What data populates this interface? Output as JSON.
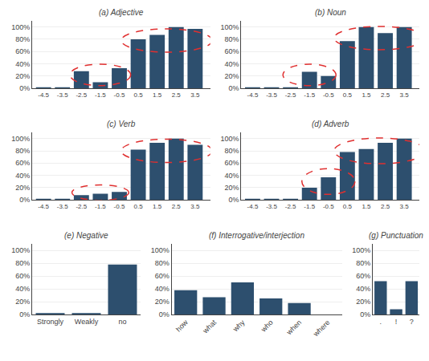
{
  "chart_data": [
    {
      "type": "bar",
      "title": "(a) Adjective",
      "x": [
        -4.5,
        -3.5,
        -2.5,
        -1.5,
        -0.5,
        0.5,
        1.5,
        2.5,
        3.5
      ],
      "values": [
        2,
        2,
        28,
        10,
        33,
        80,
        87,
        100,
        97
      ],
      "color": "#2d4f6e",
      "xlim": [
        -5.1,
        4.3
      ],
      "xticks": [
        -4.5,
        -3.5,
        -2.5,
        -1.5,
        -0.5,
        0.5,
        1.5,
        2.5,
        3.5
      ],
      "ylim": [
        0,
        110
      ],
      "yticks": [
        {
          "value": 0,
          "label": "0%"
        },
        {
          "value": 20,
          "label": "20%"
        },
        {
          "value": 40,
          "label": "40%"
        },
        {
          "value": 60,
          "label": "60%"
        },
        {
          "value": 80,
          "label": "80%"
        },
        {
          "value": 100,
          "label": "100%"
        }
      ],
      "grid": true,
      "ellipses": [
        {
          "cx": -1.5,
          "cy": 22,
          "w": 3.2,
          "h": 35,
          "color": "#e03030"
        },
        {
          "cx": 2.0,
          "cy": 78,
          "w": 4.8,
          "h": 38,
          "color": "#e03030"
        }
      ]
    },
    {
      "type": "bar",
      "title": "(b) Noun",
      "x": [
        -4.5,
        -3.5,
        -2.5,
        -1.5,
        -0.5,
        0.5,
        1.5,
        2.5,
        3.5
      ],
      "values": [
        2,
        2,
        2,
        27,
        20,
        77,
        100,
        90,
        100
      ],
      "color": "#2d4f6e",
      "xlim": [
        -5.1,
        4.3
      ],
      "xticks": [
        -4.5,
        -3.5,
        -2.5,
        -1.5,
        -0.5,
        0.5,
        1.5,
        2.5,
        3.5
      ],
      "ylim": [
        0,
        110
      ],
      "yticks": [
        {
          "value": 0,
          "label": "0%"
        },
        {
          "value": 20,
          "label": "20%"
        },
        {
          "value": 40,
          "label": "40%"
        },
        {
          "value": 60,
          "label": "60%"
        },
        {
          "value": 80,
          "label": "80%"
        },
        {
          "value": 100,
          "label": "100%"
        }
      ],
      "grid": true,
      "ellipses": [
        {
          "cx": -1.5,
          "cy": 22,
          "w": 2.8,
          "h": 35,
          "color": "#e03030"
        },
        {
          "cx": 2.2,
          "cy": 82,
          "w": 4.8,
          "h": 38,
          "color": "#e03030"
        }
      ]
    },
    {
      "type": "bar",
      "title": "(c) Verb",
      "x": [
        -4.5,
        -3.5,
        -2.5,
        -1.5,
        -0.5,
        0.5,
        1.5,
        2.5,
        3.5
      ],
      "values": [
        2,
        2,
        8,
        10,
        13,
        82,
        93,
        100,
        90
      ],
      "color": "#2d4f6e",
      "xlim": [
        -5.1,
        4.3
      ],
      "xticks": [
        -4.5,
        -3.5,
        -2.5,
        -1.5,
        -0.5,
        0.5,
        1.5,
        2.5,
        3.5
      ],
      "ylim": [
        0,
        110
      ],
      "yticks": [
        {
          "value": 0,
          "label": "0%"
        },
        {
          "value": 20,
          "label": "20%"
        },
        {
          "value": 40,
          "label": "40%"
        },
        {
          "value": 60,
          "label": "60%"
        },
        {
          "value": 80,
          "label": "80%"
        },
        {
          "value": 100,
          "label": "100%"
        }
      ],
      "grid": true,
      "ellipses": [
        {
          "cx": -1.5,
          "cy": 12,
          "w": 3.0,
          "h": 25,
          "color": "#e03030"
        },
        {
          "cx": 2.0,
          "cy": 80,
          "w": 4.8,
          "h": 38,
          "color": "#e03030"
        }
      ]
    },
    {
      "type": "bar",
      "title": "(d) Adverb",
      "x": [
        -4.5,
        -3.5,
        -2.5,
        -1.5,
        -0.5,
        0.5,
        1.5,
        2.5,
        3.5
      ],
      "values": [
        2,
        2,
        2,
        20,
        37,
        78,
        83,
        93,
        100
      ],
      "color": "#2d4f6e",
      "xlim": [
        -5.1,
        4.3
      ],
      "xticks": [
        -4.5,
        -3.5,
        -2.5,
        -1.5,
        -0.5,
        0.5,
        1.5,
        2.5,
        3.5
      ],
      "ylim": [
        0,
        110
      ],
      "yticks": [
        {
          "value": 0,
          "label": "0%"
        },
        {
          "value": 20,
          "label": "20%"
        },
        {
          "value": 40,
          "label": "40%"
        },
        {
          "value": 60,
          "label": "60%"
        },
        {
          "value": 80,
          "label": "80%"
        },
        {
          "value": 100,
          "label": "100%"
        }
      ],
      "grid": true,
      "ellipses": [
        {
          "cx": -0.5,
          "cy": 30,
          "w": 2.8,
          "h": 42,
          "color": "#e03030"
        },
        {
          "cx": 2.2,
          "cy": 80,
          "w": 4.8,
          "h": 42,
          "color": "#e03030"
        }
      ]
    },
    {
      "type": "bar",
      "title": "(e) Negative",
      "categories": [
        "Strongly",
        "Weakly",
        "no"
      ],
      "values": [
        2,
        2,
        78
      ],
      "color": "#2d4f6e",
      "ylim": [
        0,
        110
      ],
      "yticks": [
        {
          "value": 0,
          "label": "0%"
        },
        {
          "value": 20,
          "label": "20%"
        },
        {
          "value": 40,
          "label": "40%"
        },
        {
          "value": 60,
          "label": "60%"
        },
        {
          "value": 80,
          "label": "80%"
        },
        {
          "value": 100,
          "label": "100%"
        }
      ],
      "grid": true
    },
    {
      "type": "bar",
      "title": "(f) Interrogative/interjection",
      "categories": [
        "how",
        "what",
        "why",
        "who",
        "when",
        "where"
      ],
      "values": [
        38,
        27,
        50,
        25,
        18,
        0
      ],
      "color": "#2d4f6e",
      "ylim": [
        0,
        110
      ],
      "yticks": [
        {
          "value": 0,
          "label": "0%"
        },
        {
          "value": 20,
          "label": "20%"
        },
        {
          "value": 40,
          "label": "40%"
        },
        {
          "value": 60,
          "label": "60%"
        },
        {
          "value": 80,
          "label": "80%"
        },
        {
          "value": 100,
          "label": "100%"
        }
      ],
      "grid": true
    },
    {
      "type": "bar",
      "title": "(g) Punctuation",
      "categories": [
        ".",
        "!",
        "?"
      ],
      "values": [
        52,
        8,
        52
      ],
      "color": "#2d4f6e",
      "ylim": [
        0,
        110
      ],
      "yticks": [
        {
          "value": 0,
          "label": "0%"
        },
        {
          "value": 20,
          "label": "20%"
        },
        {
          "value": 40,
          "label": "40%"
        },
        {
          "value": 60,
          "label": "60%"
        },
        {
          "value": 80,
          "label": "80%"
        },
        {
          "value": 100,
          "label": "100%"
        }
      ],
      "grid": true
    }
  ]
}
